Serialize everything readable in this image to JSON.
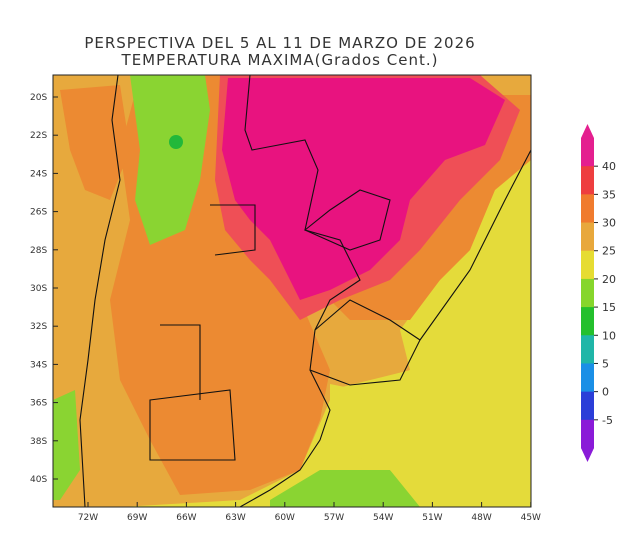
{
  "title_line1": "PERSPECTIVA DEL 5 AL 11 DE MARZO DE 2026",
  "title_line2": "TEMPERATURA MAXIMA(Grados Cent.)",
  "lat_labels": [
    "20S",
    "22S",
    "24S",
    "26S",
    "28S",
    "30S",
    "32S",
    "34S",
    "36S",
    "38S",
    "40S"
  ],
  "lon_labels": [
    "72W",
    "69W",
    "66W",
    "63W",
    "60W",
    "57W",
    "54W",
    "51W",
    "48W",
    "45W"
  ],
  "colorbar": {
    "labels": [
      "40",
      "35",
      "30",
      "25",
      "20",
      "15",
      "10",
      "5",
      "0",
      "-5"
    ],
    "colors": [
      "#e41f8f",
      "#ee3e3f",
      "#f07b2e",
      "#e8a83c",
      "#e6dc32",
      "#86d62c",
      "#24c02d",
      "#1fb6a8",
      "#1a8fe6",
      "#2b3ed8",
      "#8a1bd8"
    ]
  },
  "palette": {
    "magenta": "#e8137f",
    "red": "#ef4f56",
    "orange": "#ec8a32",
    "lightorange": "#e7a93d",
    "yellow": "#e4db3a",
    "lightgreen": "#8ad432",
    "green": "#22b83a"
  }
}
